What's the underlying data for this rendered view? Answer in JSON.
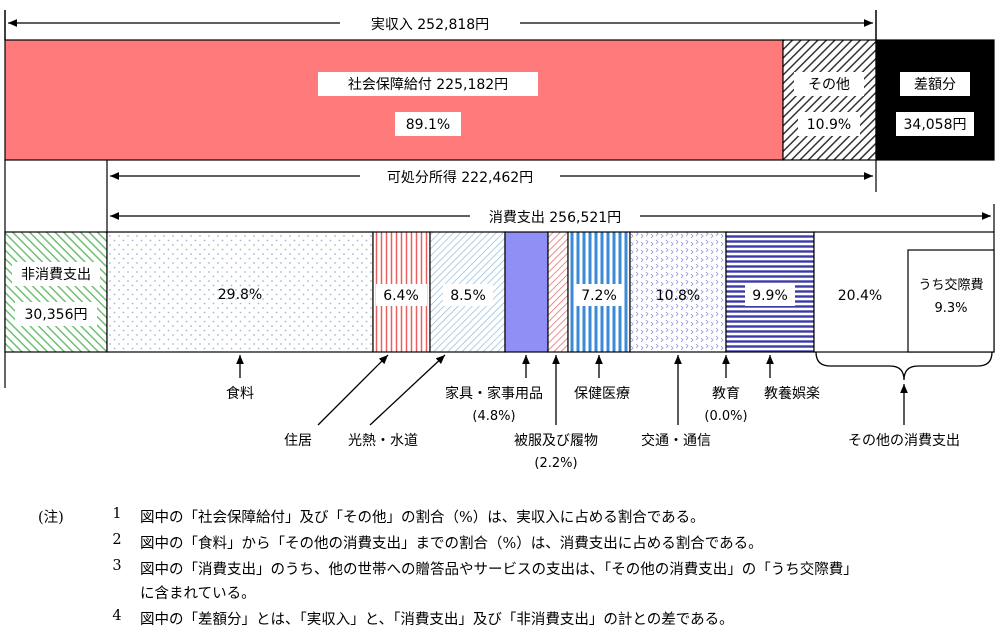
{
  "chart_data": {
    "type": "bar",
    "income_bar": {
      "span_label": "実収入 252,818円",
      "segments": [
        {
          "name": "社会保障給付",
          "label": "社会保障給付 225,182円",
          "value": 225182,
          "pct_label": "89.1%",
          "color": "#ff7b7b"
        },
        {
          "name": "その他",
          "label": "その他",
          "value": 27636,
          "pct_label": "10.9%",
          "color": "#555555"
        },
        {
          "name": "差額分",
          "label": "差額分",
          "value": 34058,
          "pct_label": "34,058円",
          "color": "#000000"
        }
      ],
      "disposable_label": "可処分所得 222,462円"
    },
    "expense_bar": {
      "consumption_label": "消費支出 256,521円",
      "non_consumption": {
        "label": "非消費支出",
        "value_label": "30,356円",
        "value": 30356,
        "color": "#6fbf73"
      },
      "segments": [
        {
          "name": "食料",
          "pct": 29.8,
          "pct_label": "29.8%",
          "color": "#c9d8ee",
          "pattern": "dots"
        },
        {
          "name": "住居",
          "pct": 6.4,
          "pct_label": "6.4%",
          "color": "#e05050",
          "pattern": "vlines"
        },
        {
          "name": "光熱・水道",
          "pct": 8.5,
          "pct_label": "8.5%",
          "color": "#7fb2dc",
          "pattern": "diag"
        },
        {
          "name": "家具・家事用品",
          "pct": 4.8,
          "pct_label": "",
          "color": "#8f8ff5",
          "pattern": "solid"
        },
        {
          "name": "被服及び履物",
          "pct": 2.2,
          "pct_label": "",
          "color": "#e06060",
          "pattern": "diag"
        },
        {
          "name": "保健医療",
          "pct": 7.2,
          "pct_label": "7.2%",
          "color": "#3a8ad8",
          "pattern": "vlines"
        },
        {
          "name": "交通・通信",
          "pct": 10.8,
          "pct_label": "10.8%",
          "color": "#9090e0",
          "pattern": "chevron"
        },
        {
          "name": "教育",
          "pct": 0.0,
          "pct_label": "",
          "color": "#ffffff",
          "pattern": "solid"
        },
        {
          "name": "教養娯楽",
          "pct": 9.9,
          "pct_label": "9.9%",
          "color": "#3b3ba8",
          "pattern": "hlines"
        },
        {
          "name": "その他の消費支出",
          "pct": 20.4,
          "pct_label": "20.4%",
          "color": "#ffffff",
          "pattern": "solid"
        }
      ],
      "sub_box": {
        "label": "うち交際費",
        "pct_label": "9.3%"
      }
    },
    "category_labels": {
      "food": "食料",
      "housing": "住居",
      "utilities": "光熱・水道",
      "furniture": "家具・家事用品",
      "furniture_pct": "(4.8%)",
      "clothing": "被服及び履物",
      "clothing_pct": "(2.2%)",
      "medical": "保健医療",
      "transport": "交通・通信",
      "education": "教育",
      "education_pct": "(0.0%)",
      "culture": "教養娯楽",
      "other": "その他の消費支出"
    }
  },
  "notes": {
    "head": "(注)",
    "items": [
      {
        "num": "1",
        "text": "図中の「社会保障給付」及び「その他」の割合（%）は、実収入に占める割合である。"
      },
      {
        "num": "2",
        "text": "図中の「食料」から「その他の消費支出」までの割合（%）は、消費支出に占める割合である。"
      },
      {
        "num": "3",
        "text": "図中の「消費支出」のうち、他の世帯への贈答品やサービスの支出は、「その他の消費支出」の「うち交際費」",
        "text2": "に含まれている。"
      },
      {
        "num": "4",
        "text": "図中の「差額分」とは、「実収入」と、「消費支出」及び「非消費支出」の計との差である。"
      }
    ]
  }
}
